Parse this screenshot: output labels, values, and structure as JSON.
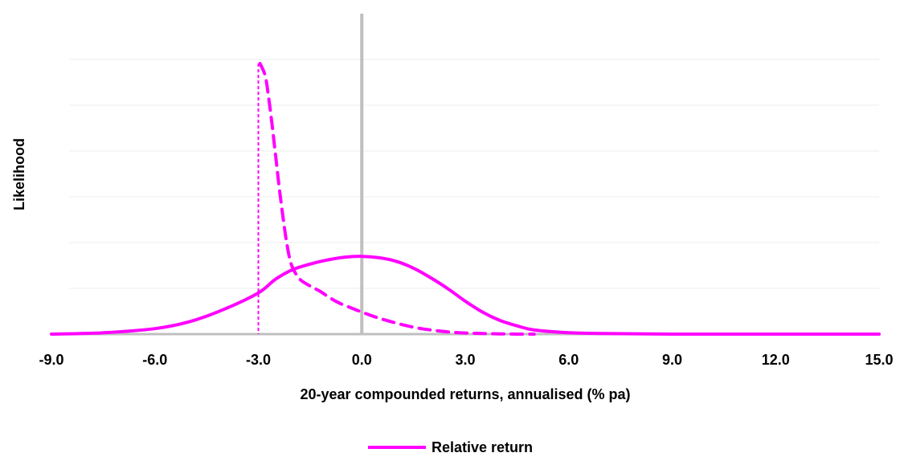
{
  "chart_data": {
    "type": "line",
    "xlabel": "20-year compounded returns, annualised (% pa)",
    "ylabel": "Likelihood",
    "xlim": [
      -9.0,
      15.0
    ],
    "ylim": [
      0,
      1.0
    ],
    "x_tick_labels": [
      "-9.0",
      "-6.0",
      "-3.0",
      "0.0",
      "3.0",
      "6.0",
      "9.0",
      "12.0",
      "15.0"
    ],
    "x_ticks": [
      -9,
      -6,
      -3,
      0,
      3,
      6,
      9,
      12,
      15
    ],
    "y_gridlines": [
      0.143,
      0.286,
      0.429,
      0.571,
      0.714,
      0.857,
      1.0
    ],
    "y_tick_labels_visible": false,
    "grid": true,
    "legend_position": "bottom-center",
    "series": [
      {
        "name": "Relative return",
        "style": "solid",
        "color": "#FF00FF",
        "x": [
          -9.0,
          -7.5,
          -6.0,
          -5.0,
          -4.0,
          -3.0,
          -2.5,
          -2.0,
          -1.5,
          -1.0,
          -0.5,
          0.0,
          0.5,
          1.0,
          1.5,
          2.0,
          2.5,
          3.0,
          3.5,
          4.0,
          4.5,
          5.0,
          6.0,
          7.0,
          9.0,
          12.0,
          15.0
        ],
        "y": [
          0.0,
          0.005,
          0.02,
          0.045,
          0.09,
          0.15,
          0.2,
          0.235,
          0.255,
          0.27,
          0.28,
          0.283,
          0.278,
          0.265,
          0.24,
          0.205,
          0.165,
          0.12,
          0.08,
          0.05,
          0.03,
          0.015,
          0.005,
          0.002,
          0.0,
          0.0,
          0.0
        ]
      },
      {
        "style": "dashed",
        "color": "#FF00FF",
        "x": [
          -3.0,
          -2.95,
          -2.8,
          -2.7,
          -2.6,
          -2.5,
          -2.4,
          -2.3,
          -2.2,
          -2.1,
          -2.0,
          -1.8,
          -1.5,
          -1.2,
          -0.9,
          -0.6,
          -0.3,
          0.0,
          0.5,
          1.0,
          1.5,
          2.0,
          2.5,
          3.0,
          3.5,
          4.0,
          4.5,
          5.0
        ],
        "y": [
          0.0,
          0.985,
          0.94,
          0.86,
          0.76,
          0.65,
          0.54,
          0.44,
          0.35,
          0.28,
          0.24,
          0.2,
          0.175,
          0.155,
          0.13,
          0.11,
          0.095,
          0.08,
          0.058,
          0.04,
          0.025,
          0.015,
          0.008,
          0.004,
          0.002,
          0.001,
          0.0,
          0.0
        ]
      }
    ],
    "reference_lines": [
      {
        "axis": "x",
        "value": 0.0,
        "color": "#BFBFBF"
      },
      {
        "axis": "x",
        "value": -3.0,
        "color": "#FF00FF",
        "style": "dotted"
      }
    ]
  }
}
